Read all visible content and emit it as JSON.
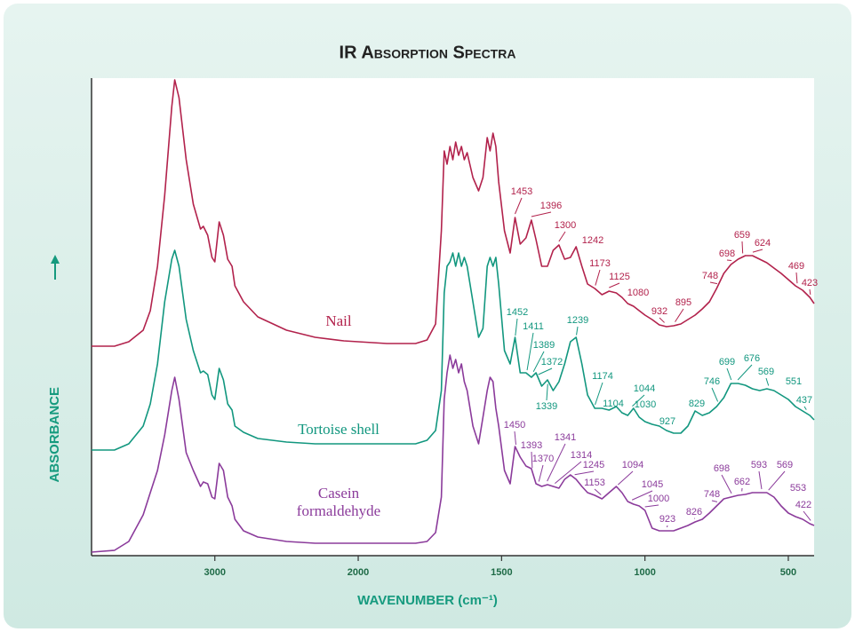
{
  "chart_data": {
    "type": "line",
    "title": "IR Absorption Spectra",
    "x_label": "WAVENUMBER (cm⁻¹)",
    "y_label": "ABSORBANCE",
    "xlim": [
      3860,
      410
    ],
    "xticks": [
      3000,
      2000,
      1500,
      1000,
      500
    ],
    "ylim": [
      0,
      538
    ],
    "x": [
      3860,
      3700,
      3600,
      3500,
      3450,
      3400,
      3350,
      3300,
      3280,
      3250,
      3200,
      3150,
      3100,
      3080,
      3050,
      3020,
      3000,
      2970,
      2940,
      2910,
      2880,
      2860,
      2800,
      2700,
      2500,
      2300,
      2100,
      1900,
      1800,
      1760,
      1730,
      1710,
      1700,
      1690,
      1680,
      1670,
      1660,
      1650,
      1640,
      1630,
      1620,
      1600,
      1580,
      1565,
      1550,
      1540,
      1530,
      1520,
      1510,
      1490,
      1470,
      1453,
      1435,
      1415,
      1396,
      1380,
      1360,
      1340,
      1320,
      1300,
      1280,
      1260,
      1240,
      1220,
      1200,
      1175,
      1150,
      1125,
      1100,
      1080,
      1060,
      1040,
      1020,
      1000,
      975,
      950,
      925,
      900,
      875,
      850,
      825,
      800,
      775,
      750,
      725,
      700,
      675,
      650,
      625,
      600,
      575,
      550,
      525,
      500,
      475,
      450,
      425,
      410
    ],
    "series": [
      {
        "name": "Nail",
        "color": "#b2224c",
        "values": [
          236,
          236,
          241,
          254,
          276,
          326,
          406,
          506,
          536,
          516,
          446,
          396,
          368,
          371,
          361,
          336,
          331,
          376,
          361,
          334,
          326,
          304,
          286,
          269,
          254,
          246,
          242,
          239,
          239,
          243,
          261,
          366,
          456,
          441,
          461,
          446,
          466,
          451,
          461,
          446,
          454,
          426,
          411,
          426,
          471,
          456,
          476,
          461,
          421,
          366,
          341,
          381,
          351,
          358,
          378,
          356,
          326,
          326,
          344,
          350,
          334,
          336,
          348,
          326,
          306,
          301,
          294,
          298,
          296,
          291,
          284,
          281,
          276,
          271,
          266,
          260,
          258,
          259,
          261,
          266,
          271,
          278,
          286,
          301,
          318,
          328,
          334,
          338,
          338,
          334,
          330,
          324,
          318,
          311,
          304,
          299,
          291,
          284
        ],
        "peaks": [
          1453,
          1396,
          1300,
          1242,
          1173,
          1125,
          1080,
          932,
          895,
          748,
          698,
          659,
          624,
          469,
          423
        ]
      },
      {
        "name": "Tortoise shell",
        "color": "#12977f",
        "values": [
          119,
          119,
          126,
          146,
          171,
          216,
          286,
          334,
          344,
          326,
          266,
          231,
          206,
          208,
          204,
          181,
          176,
          211,
          198,
          171,
          164,
          146,
          139,
          132,
          128,
          126,
          126,
          126,
          126,
          130,
          141,
          186,
          296,
          326,
          331,
          341,
          326,
          341,
          326,
          336,
          326,
          286,
          246,
          256,
          326,
          336,
          326,
          336,
          306,
          231,
          216,
          246,
          206,
          206,
          201,
          206,
          191,
          198,
          186,
          196,
          216,
          241,
          246,
          216,
          181,
          166,
          166,
          164,
          168,
          161,
          158,
          166,
          156,
          151,
          148,
          146,
          141,
          138,
          138,
          146,
          163,
          158,
          161,
          168,
          178,
          194,
          194,
          192,
          188,
          186,
          188,
          186,
          181,
          176,
          168,
          163,
          158,
          153
        ],
        "peaks": [
          1452,
          1411,
          1389,
          1372,
          1339,
          1239,
          1174,
          1104,
          1044,
          1030,
          927,
          829,
          746,
          699,
          676,
          569,
          551,
          437
        ]
      },
      {
        "name": "Casein formaldehyde",
        "color": "#8b3b9b",
        "values": [
          4,
          6,
          16,
          46,
          71,
          96,
          136,
          186,
          201,
          176,
          116,
          96,
          78,
          83,
          81,
          66,
          64,
          104,
          96,
          66,
          56,
          41,
          28,
          21,
          16,
          14,
          14,
          14,
          14,
          16,
          26,
          66,
          176,
          206,
          226,
          211,
          221,
          206,
          216,
          196,
          186,
          146,
          126,
          156,
          186,
          201,
          196,
          166,
          146,
          96,
          81,
          123,
          111,
          101,
          98,
          81,
          78,
          80,
          78,
          76,
          86,
          91,
          86,
          78,
          71,
          68,
          64,
          71,
          78,
          71,
          61,
          58,
          56,
          51,
          31,
          28,
          28,
          28,
          31,
          34,
          38,
          41,
          48,
          56,
          64,
          66,
          68,
          69,
          71,
          71,
          71,
          66,
          56,
          48,
          44,
          41,
          36,
          34
        ],
        "peaks": [
          1450,
          1393,
          1370,
          1341,
          1314,
          1245,
          1153,
          1094,
          1045,
          1000,
          923,
          826,
          748,
          698,
          662,
          593,
          569,
          553,
          422
        ]
      }
    ]
  }
}
